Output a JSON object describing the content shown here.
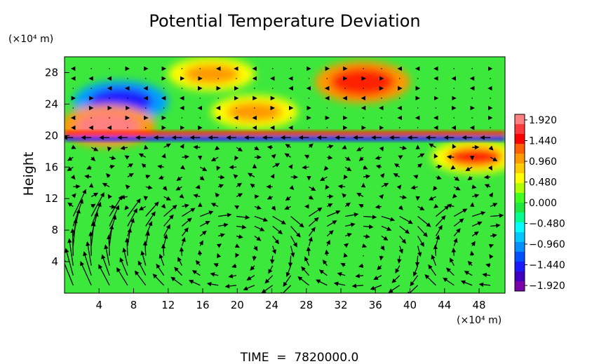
{
  "chart_data": {
    "type": "heatmap",
    "title": "Potential Temperature Deviation",
    "ylabel": "Height",
    "y_unit": "(×10⁴ m)",
    "x_unit": "(×10⁴ m)",
    "xlim": [
      0,
      51
    ],
    "ylim": [
      0,
      30
    ],
    "x_ticks": [
      "4",
      "8",
      "12",
      "16",
      "20",
      "24",
      "28",
      "32",
      "36",
      "40",
      "44",
      "48"
    ],
    "y_ticks": [
      "4",
      "8",
      "12",
      "16",
      "20",
      "24",
      "28"
    ],
    "colorbar": {
      "min": -1.92,
      "max": 1.92,
      "ticks": [
        "1.920",
        "1.440",
        "0.960",
        "0.480",
        "0.000",
        "−0.480",
        "−0.960",
        "−1.440",
        "−1.920"
      ],
      "colors": [
        "#7a00a8",
        "#1a1aff",
        "#00a0ff",
        "#00e0e0",
        "#20ff20",
        "#ffff00",
        "#ff9900",
        "#ff2000",
        "#ff8080"
      ]
    },
    "features": [
      {
        "kind": "anomaly",
        "x": 6.5,
        "y": 24.3,
        "value": -1.6
      },
      {
        "kind": "anomaly",
        "x": 17,
        "y": 27.8,
        "value": 0.8
      },
      {
        "kind": "anomaly",
        "x": 34.5,
        "y": 26.8,
        "value": 1.6
      },
      {
        "kind": "anomaly",
        "x": 22,
        "y": 23,
        "value": 1.0
      },
      {
        "kind": "anomaly",
        "x": 5,
        "y": 21.2,
        "value": 1.9
      },
      {
        "kind": "anomaly",
        "x": 47.5,
        "y": 17.3,
        "value": 1.3
      },
      {
        "kind": "layer",
        "y": 20.3,
        "value": 1.2
      },
      {
        "kind": "layer",
        "y": 19.6,
        "value": -1.5
      }
    ],
    "grid": false,
    "vectors": "wind arrows overlay"
  },
  "footer": {
    "time_label": "TIME  =  7820000.0"
  }
}
